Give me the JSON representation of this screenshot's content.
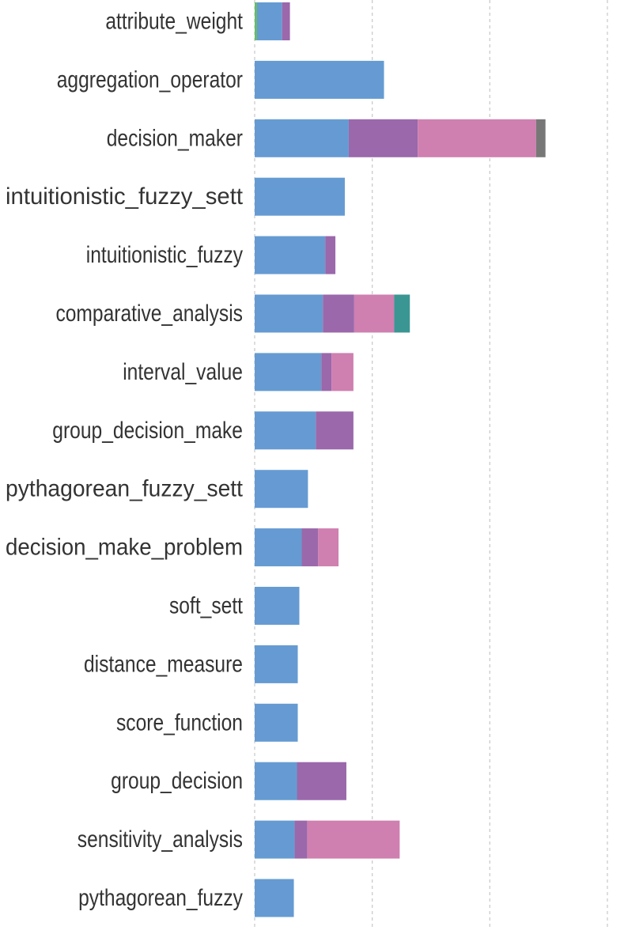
{
  "chart_data": {
    "type": "bar",
    "orientation": "horizontal",
    "stacked": true,
    "categories": [
      "attribute_weight",
      "aggregation_operator",
      "decision_maker",
      "intuitionistic_fuzzy_sett",
      "intuitionistic_fuzzy",
      "comparative_analysis",
      "interval_value",
      "group_decision_make",
      "pythagorean_fuzzy_sett",
      "decision_make_problem",
      "soft_sett",
      "distance_measure",
      "score_function",
      "group_decision",
      "sensitivity_analysis",
      "pythagorean_fuzzy"
    ],
    "series": [
      {
        "color": "#66bb6a",
        "values": [
          0.3,
          0,
          0,
          0,
          0,
          0,
          0,
          0,
          0,
          0,
          0,
          0,
          0,
          0,
          0,
          0
        ]
      },
      {
        "color": "#659bd2",
        "values": [
          3.2,
          16.5,
          12.0,
          11.5,
          9.0,
          8.7,
          8.5,
          7.8,
          6.8,
          6.0,
          5.7,
          5.5,
          5.5,
          5.4,
          5.1,
          5.0
        ]
      },
      {
        "color": "#9a68ab",
        "values": [
          1.0,
          0,
          8.8,
          0,
          1.3,
          4.0,
          1.3,
          4.8,
          0,
          2.1,
          0,
          0,
          0,
          6.3,
          1.6,
          0
        ]
      },
      {
        "color": "#cf7fb0",
        "values": [
          0,
          0,
          15.1,
          0,
          0,
          5.1,
          2.8,
          0,
          0,
          2.6,
          0,
          0,
          0,
          0,
          11.8,
          0
        ]
      },
      {
        "color": "#3a9692",
        "values": [
          0,
          0,
          0,
          0,
          0,
          2.0,
          0,
          0,
          0,
          0,
          0,
          0,
          0,
          0,
          0,
          0
        ]
      },
      {
        "color": "#777777",
        "values": [
          0,
          0,
          1.2,
          0,
          0,
          0,
          0,
          0,
          0,
          0,
          0,
          0,
          0,
          0,
          0,
          0
        ]
      }
    ],
    "xlim": [
      0,
      45
    ],
    "xticks": [
      0,
      15,
      30,
      45
    ],
    "grid": true,
    "xlabel": "",
    "ylabel": "",
    "title": ""
  }
}
